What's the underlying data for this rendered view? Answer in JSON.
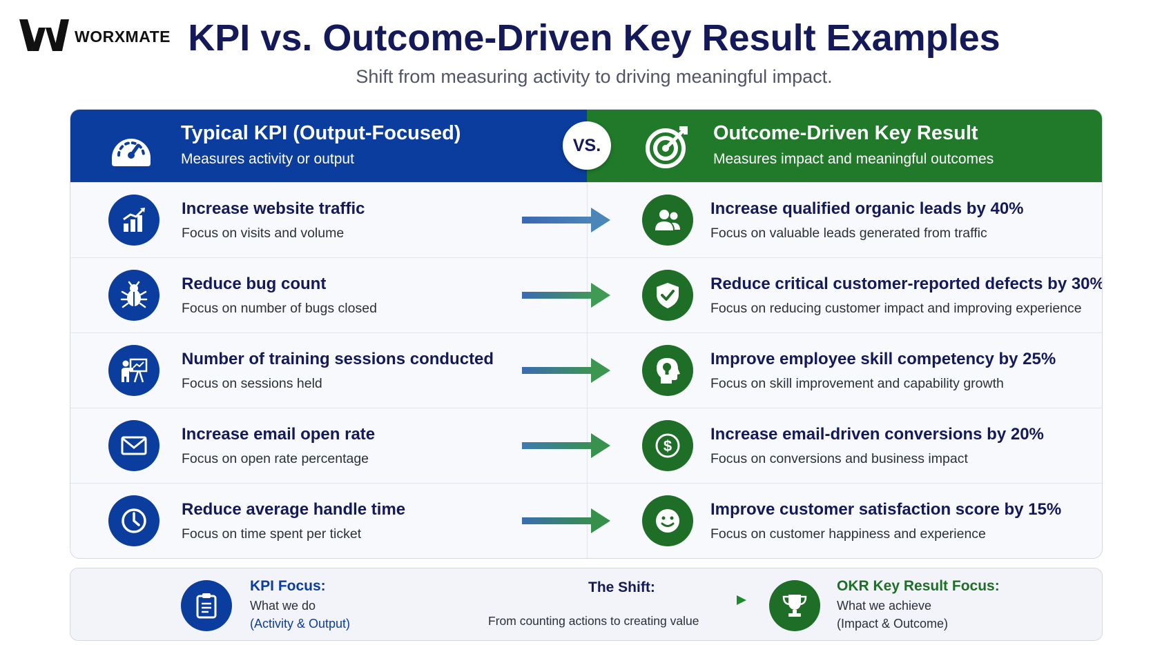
{
  "brand": {
    "name": "WORXMATE"
  },
  "title": "KPI vs. Outcome-Driven Key Result Examples",
  "subtitle": "Shift from measuring activity to driving meaningful impact.",
  "left_header": {
    "title": "Typical KPI (Output-Focused)",
    "subtitle": "Measures activity or output",
    "icon": "speedometer-icon"
  },
  "right_header": {
    "title": "Outcome-Driven Key Result",
    "subtitle": "Measures impact and meaningful outcomes",
    "icon": "target-icon"
  },
  "vs_label": "VS.",
  "colors": {
    "kpi_blue": "#0a3d9e",
    "okr_green": "#207a2a",
    "navy_text": "#14195a"
  },
  "rows": [
    {
      "kpi": {
        "title": "Increase website traffic",
        "sub": "Focus on visits and volume",
        "icon": "bar-chart-icon"
      },
      "kr": {
        "title": "Increase qualified organic leads by 40%",
        "sub": "Focus on valuable leads generated from traffic",
        "icon": "users-icon"
      }
    },
    {
      "kpi": {
        "title": "Reduce bug count",
        "sub": "Focus on number of bugs closed",
        "icon": "bug-icon"
      },
      "kr": {
        "title": "Reduce critical customer-reported defects by 30%",
        "sub": "Focus on reducing customer impact and improving experience",
        "icon": "shield-check-icon"
      }
    },
    {
      "kpi": {
        "title": "Number of training sessions conducted",
        "sub": "Focus on sessions held",
        "icon": "presentation-icon"
      },
      "kr": {
        "title": "Improve employee skill competency by 25%",
        "sub": "Focus on skill improvement and capability growth",
        "icon": "head-lightbulb-icon"
      }
    },
    {
      "kpi": {
        "title": "Increase email open rate",
        "sub": "Focus on open rate percentage",
        "icon": "envelope-icon"
      },
      "kr": {
        "title": "Increase email-driven conversions by 20%",
        "sub": "Focus on conversions and business impact",
        "icon": "dollar-icon"
      }
    },
    {
      "kpi": {
        "title": "Reduce average handle time",
        "sub": "Focus on time spent per ticket",
        "icon": "clock-icon"
      },
      "kr": {
        "title": "Improve customer satisfaction score by 15%",
        "sub": "Focus on customer happiness and experience",
        "icon": "smiley-icon"
      }
    }
  ],
  "footer": {
    "kpi": {
      "label": "KPI Focus:",
      "line1": "What we do",
      "line2": "(Activity & Output)",
      "icon": "clipboard-icon"
    },
    "shift": {
      "label": "The Shift:",
      "sub": "From counting actions to creating value"
    },
    "okr": {
      "label": "OKR Key Result Focus:",
      "line1": "What we achieve",
      "line2": "(Impact & Outcome)",
      "icon": "trophy-icon"
    }
  }
}
